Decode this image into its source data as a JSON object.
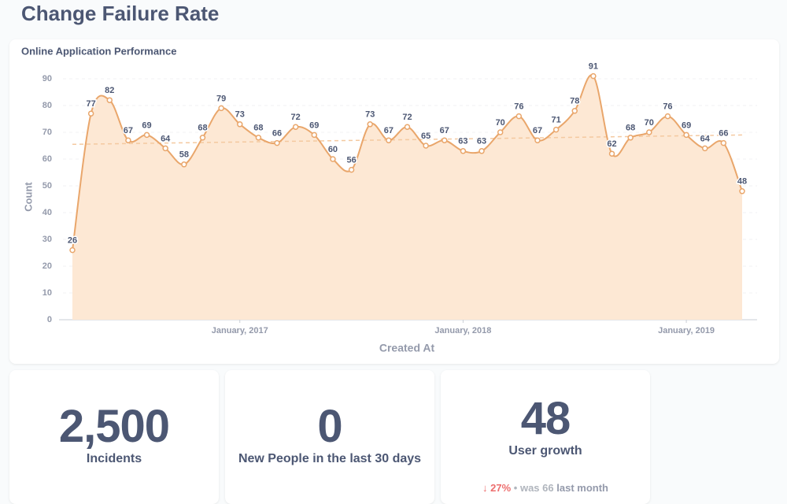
{
  "title": "Change Failure Rate",
  "chart_data": {
    "type": "area",
    "title": "Online Application Performance",
    "x_label": "Created At",
    "y_label": "Count",
    "x": [
      "2016-04",
      "2016-05",
      "2016-06",
      "2016-07",
      "2016-08",
      "2016-09",
      "2016-10",
      "2016-11",
      "2016-12",
      "2017-01",
      "2017-02",
      "2017-03",
      "2017-04",
      "2017-05",
      "2017-06",
      "2017-07",
      "2017-08",
      "2017-09",
      "2017-10",
      "2017-11",
      "2017-12",
      "2018-01",
      "2018-02",
      "2018-03",
      "2018-04",
      "2018-05",
      "2018-06",
      "2018-07",
      "2018-08",
      "2018-09",
      "2018-10",
      "2018-11",
      "2018-12",
      "2019-01",
      "2019-02",
      "2019-03",
      "2019-04"
    ],
    "values": [
      26,
      77,
      82,
      67,
      69,
      64,
      58,
      68,
      79,
      73,
      68,
      66,
      72,
      69,
      60,
      56,
      73,
      67,
      72,
      65,
      67,
      63,
      63,
      70,
      76,
      67,
      71,
      78,
      91,
      62,
      68,
      70,
      76,
      69,
      64,
      66,
      48
    ],
    "color": "#e9a66b",
    "trend_line": [
      65.5,
      69
    ],
    "ylim": [
      0,
      95
    ],
    "yticks": [
      0,
      10,
      20,
      30,
      40,
      50,
      60,
      70,
      80,
      90
    ],
    "xticks": [
      {
        "value": "2017-01",
        "label": "January, 2017"
      },
      {
        "value": "2018-01",
        "label": "January, 2018"
      },
      {
        "value": "2019-01",
        "label": "January, 2019"
      }
    ],
    "grid": true
  },
  "cards": [
    {
      "value": "2,500",
      "label": "Incidents"
    },
    {
      "value": 0,
      "label": "New People in the last 30 days"
    },
    {
      "value": 48,
      "label": "User growth",
      "change": "27%",
      "comparison": "was 66",
      "period": "last month"
    }
  ]
}
